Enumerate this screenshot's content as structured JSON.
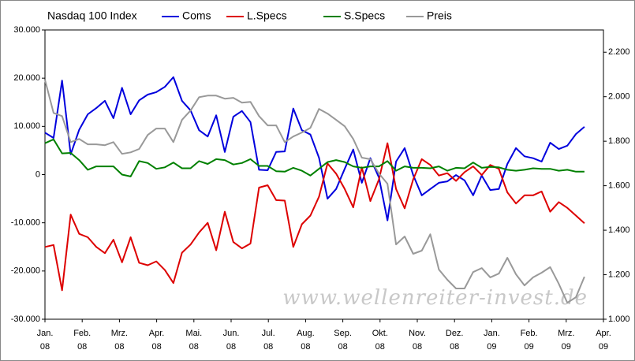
{
  "chart_data": {
    "type": "line",
    "title": "Nasdaq 100 Index",
    "annotation": "www.wellenreiter-invest.de",
    "x": [
      0,
      0.23,
      0.46,
      0.69,
      0.92,
      1.15,
      1.38,
      1.61,
      1.84,
      2.07,
      2.3,
      2.53,
      2.76,
      2.99,
      3.22,
      3.45,
      3.68,
      3.91,
      4.14,
      4.37,
      4.6,
      4.83,
      5.06,
      5.29,
      5.52,
      5.75,
      5.98,
      6.21,
      6.44,
      6.67,
      6.9,
      7.13,
      7.36,
      7.59,
      7.82,
      8.05,
      8.28,
      8.51,
      8.74,
      8.97,
      9.2,
      9.43,
      9.66,
      9.89,
      10.12,
      10.35,
      10.58,
      10.81,
      11.04,
      11.27,
      11.5,
      11.73,
      11.96,
      12.19,
      12.42,
      12.65,
      12.88,
      13.11,
      13.34,
      13.57,
      13.8,
      14.03,
      14.26,
      14.49
    ],
    "xlim": [
      0,
      15
    ],
    "xticks": [
      {
        "value": 0,
        "label": "Jan. 08"
      },
      {
        "value": 1,
        "label": "Feb. 08"
      },
      {
        "value": 2,
        "label": "Mrz. 08"
      },
      {
        "value": 3,
        "label": "Apr. 08"
      },
      {
        "value": 4,
        "label": "Mai. 08"
      },
      {
        "value": 5,
        "label": "Jun. 08"
      },
      {
        "value": 6,
        "label": "Jul. 08"
      },
      {
        "value": 7,
        "label": "Aug. 08"
      },
      {
        "value": 8,
        "label": "Sep. 08"
      },
      {
        "value": 9,
        "label": "Okt. 08"
      },
      {
        "value": 10,
        "label": "Nov. 08"
      },
      {
        "value": 11,
        "label": "Dez. 08"
      },
      {
        "value": 12,
        "label": "Jan. 09"
      },
      {
        "value": 13,
        "label": "Feb. 09"
      },
      {
        "value": 14,
        "label": "Mrz. 09"
      },
      {
        "value": 15,
        "label": "Apr. 09"
      }
    ],
    "ylim": [
      -30000,
      30000
    ],
    "yticks": [
      {
        "value": -30000,
        "label": "-30.000"
      },
      {
        "value": -20000,
        "label": "-20.000"
      },
      {
        "value": -10000,
        "label": "-10.000"
      },
      0,
      {
        "value": 10000,
        "label": "10.000"
      },
      {
        "value": 20000,
        "label": "20.000"
      },
      {
        "value": 30000,
        "label": "30.000"
      }
    ],
    "y2lim": [
      1000,
      2300
    ],
    "y2ticks": [
      {
        "value": 1000,
        "label": "1.000"
      },
      {
        "value": 1200,
        "label": "1.200"
      },
      {
        "value": 1400,
        "label": "1.400"
      },
      {
        "value": 1600,
        "label": "1.600"
      },
      {
        "value": 1800,
        "label": "1.800"
      },
      {
        "value": 2000,
        "label": "2.000"
      },
      {
        "value": 2200,
        "label": "2.200"
      }
    ],
    "series": [
      {
        "name": "Coms",
        "color": "#0000dd",
        "values": [
          8700,
          7600,
          19500,
          4200,
          9300,
          12500,
          13800,
          15300,
          11700,
          18000,
          12500,
          15400,
          16600,
          17100,
          18200,
          20200,
          15300,
          13300,
          9200,
          7900,
          12300,
          4700,
          12000,
          13200,
          10900,
          1000,
          900,
          4700,
          4800,
          13700,
          9200,
          8300,
          3500,
          -5000,
          -3000,
          1200,
          5200,
          -1700,
          3400,
          -600,
          -9500,
          2700,
          5500,
          -100,
          -4300,
          -3000,
          -1700,
          -1400,
          -100,
          -1200,
          -4300,
          -200,
          -3200,
          -3000,
          2200,
          5500,
          3800,
          3400,
          2700,
          6600,
          5300,
          6000,
          8400,
          9900
        ]
      },
      {
        "name": "L.Specs",
        "color": "#dd0000",
        "values": [
          -15000,
          -14600,
          -24000,
          -8300,
          -12300,
          -13000,
          -15000,
          -16300,
          -13500,
          -18200,
          -13000,
          -18300,
          -18800,
          -18000,
          -19800,
          -22500,
          -16200,
          -14500,
          -12000,
          -10000,
          -15700,
          -7700,
          -14000,
          -15300,
          -14300,
          -2700,
          -2200,
          -5300,
          -5400,
          -15000,
          -10300,
          -8500,
          -4600,
          2300,
          200,
          -3000,
          -6800,
          1500,
          -5500,
          -1000,
          6500,
          -3000,
          -7000,
          -1000,
          3200,
          2000,
          -200,
          300,
          -1300,
          500,
          1700,
          -100,
          2000,
          1200,
          -3700,
          -6000,
          -4300,
          -4300,
          -3500,
          -7700,
          -5700,
          -6900,
          -8500,
          -10100
        ]
      },
      {
        "name": "S.Specs",
        "color": "#008000",
        "values": [
          6500,
          7300,
          4400,
          4500,
          3000,
          1000,
          1700,
          1700,
          1700,
          0,
          -400,
          2800,
          2400,
          1200,
          1500,
          2500,
          1300,
          1300,
          2800,
          2200,
          3200,
          3000,
          2100,
          2400,
          3200,
          1800,
          1800,
          700,
          600,
          1400,
          800,
          -200,
          1200,
          2600,
          3000,
          2600,
          1700,
          1400,
          1700,
          1700,
          2800,
          800,
          1700,
          1400,
          1400,
          1300,
          1700,
          800,
          1400,
          1300,
          2500,
          1400,
          1600,
          1500,
          1000,
          800,
          1000,
          1300,
          1200,
          1200,
          800,
          1000,
          600,
          600
        ]
      },
      {
        "name": "Preis",
        "color": "#999999",
        "axis": "y2",
        "values": [
          2076,
          1927,
          1913,
          1796,
          1810,
          1786,
          1786,
          1782,
          1796,
          1743,
          1750,
          1765,
          1828,
          1857,
          1857,
          1796,
          1896,
          1938,
          1998,
          2005,
          2005,
          1991,
          1995,
          1973,
          1977,
          1913,
          1871,
          1871,
          1796,
          1821,
          1839,
          1860,
          1945,
          1924,
          1896,
          1867,
          1810,
          1726,
          1719,
          1655,
          1609,
          1336,
          1372,
          1294,
          1308,
          1382,
          1223,
          1177,
          1138,
          1138,
          1212,
          1230,
          1188,
          1205,
          1276,
          1202,
          1152,
          1188,
          1209,
          1234,
          1159,
          1074,
          1099,
          1191
        ]
      }
    ]
  }
}
